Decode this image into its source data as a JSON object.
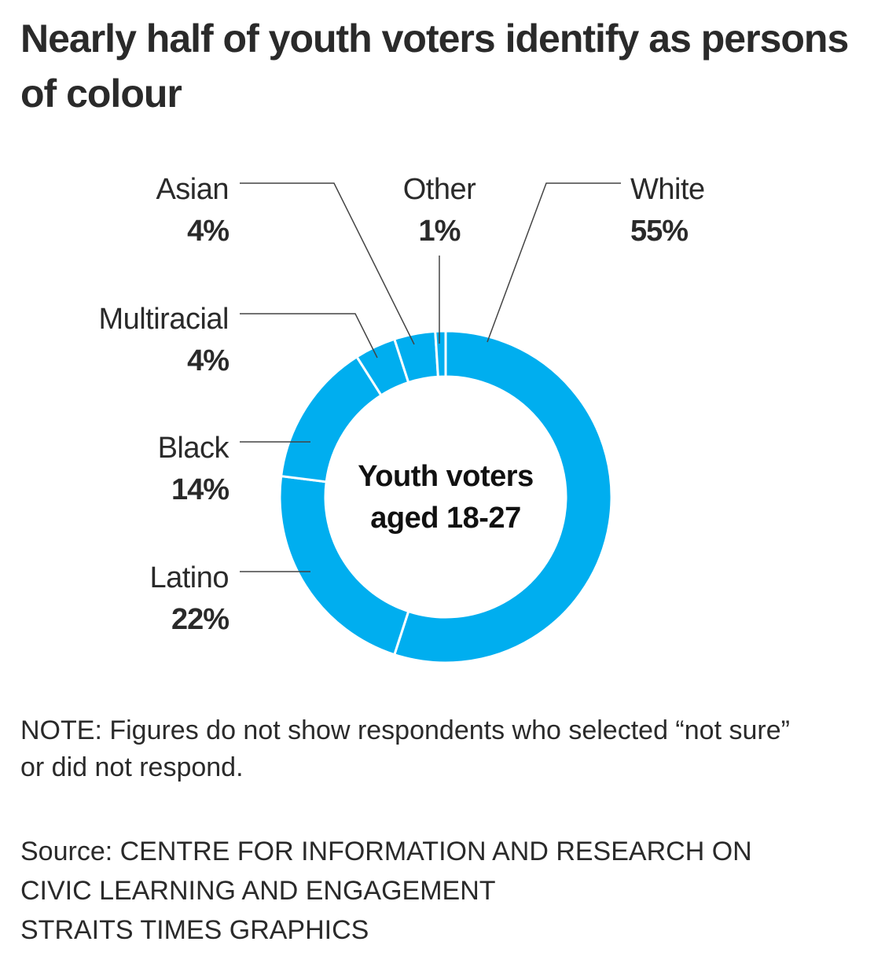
{
  "chart_data": {
    "type": "pie",
    "title": "Nearly half of youth voters identify as persons of colour",
    "center_label": [
      "Youth voters",
      "aged 18-27"
    ],
    "slices": [
      {
        "label": "White",
        "value": 55,
        "display": "55%"
      },
      {
        "label": "Latino",
        "value": 22,
        "display": "22%"
      },
      {
        "label": "Black",
        "value": 14,
        "display": "14%"
      },
      {
        "label": "Multiracial",
        "value": 4,
        "display": "4%"
      },
      {
        "label": "Asian",
        "value": 4,
        "display": "4%"
      },
      {
        "label": "Other",
        "value": 1,
        "display": "1%"
      }
    ],
    "color": "#00aeef",
    "donut": true
  },
  "note": "NOTE: Figures do not show respondents who selected “not sure” or did not respond.",
  "source": [
    "Source: CENTRE FOR INFORMATION AND RESEARCH ON",
    "CIVIC LEARNING AND ENGAGEMENT",
    "STRAITS TIMES GRAPHICS"
  ]
}
